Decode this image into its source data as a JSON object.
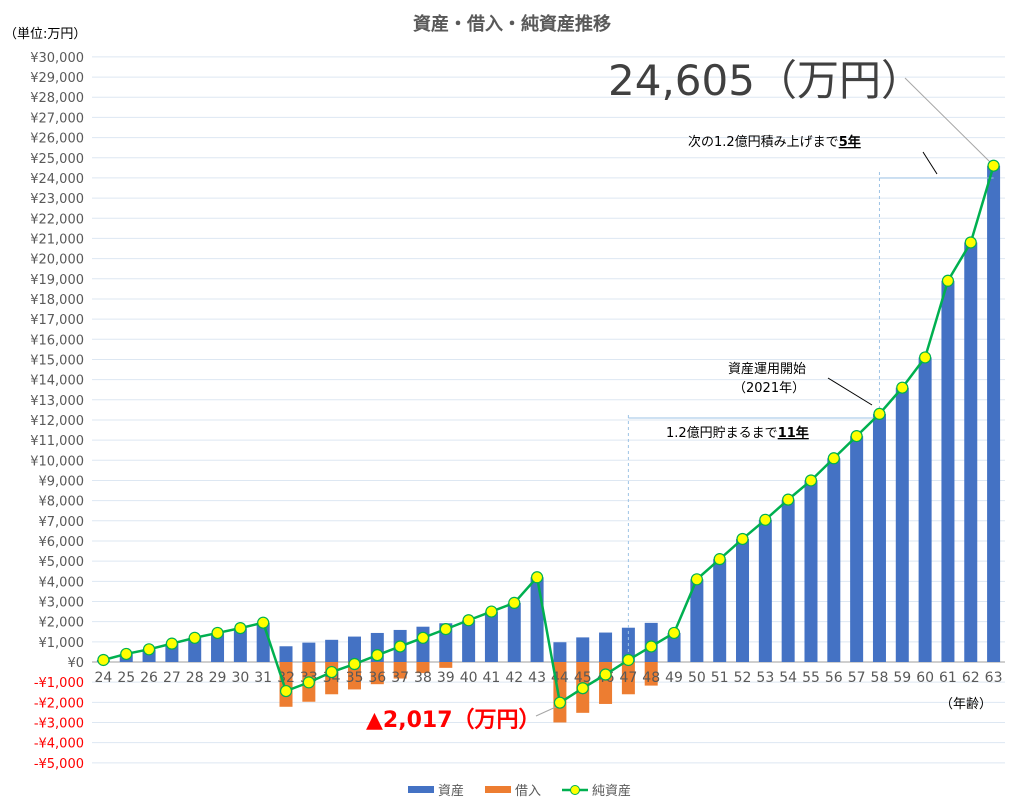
{
  "chart_data": {
    "type": "bar",
    "title": "資産・借入・純資産推移",
    "unit_label": "（単位:万円）",
    "xlabel": "（年齢）",
    "ylabel": "",
    "ylim": [
      -5000,
      30000
    ],
    "ystep": 1000,
    "grid": true,
    "legend_position": "bottom",
    "categories": [
      "24",
      "25",
      "26",
      "27",
      "28",
      "29",
      "30",
      "31",
      "32",
      "33",
      "34",
      "35",
      "36",
      "37",
      "38",
      "39",
      "40",
      "41",
      "42",
      "43",
      "44",
      "45",
      "46",
      "47",
      "48",
      "49",
      "50",
      "51",
      "52",
      "53",
      "54",
      "55",
      "56",
      "57",
      "58",
      "59",
      "60",
      "61",
      "62",
      "63"
    ],
    "series": [
      {
        "name": "資産",
        "type": "bar",
        "color": "#4472c4",
        "values": [
          100,
          400,
          630,
          910,
          1200,
          1440,
          1680,
          1950,
          780,
          960,
          1100,
          1260,
          1440,
          1590,
          1750,
          1920,
          2070,
          2500,
          2930,
          4200,
          980,
          1220,
          1460,
          1700,
          1940,
          1440,
          4100,
          5100,
          6100,
          7050,
          8050,
          9000,
          10100,
          11200,
          12300,
          13600,
          15100,
          18900,
          20800,
          24605
        ]
      },
      {
        "name": "借入",
        "type": "bar",
        "color": "#ed7d31",
        "values": [
          0,
          0,
          0,
          0,
          0,
          0,
          0,
          0,
          -2220,
          -1970,
          -1600,
          -1360,
          -1100,
          -820,
          -550,
          -290,
          0,
          0,
          0,
          0,
          -2997,
          -2520,
          -2080,
          -1600,
          -1170,
          0,
          0,
          0,
          0,
          0,
          0,
          0,
          0,
          0,
          0,
          0,
          0,
          0,
          0,
          0
        ]
      },
      {
        "name": "純資産",
        "type": "line",
        "color": "#00b050",
        "marker_color": "#ffff00",
        "values": [
          100,
          400,
          630,
          910,
          1200,
          1440,
          1680,
          1950,
          -1440,
          -1010,
          -500,
          -100,
          340,
          770,
          1200,
          1630,
          2070,
          2500,
          2930,
          4200,
          -2017,
          -1300,
          -620,
          100,
          770,
          1440,
          4100,
          5100,
          6100,
          7050,
          8050,
          9000,
          10100,
          11200,
          12300,
          13600,
          15100,
          18900,
          20800,
          24605
        ]
      }
    ],
    "annotations": {
      "final": "24,605（万円）",
      "next_prefix": "次の1.2億円積み上げまで",
      "next_years": "5年",
      "start_line1": "資産運用開始",
      "start_line2": "（2021年）",
      "until_prefix": "1.2億円貯まるまで",
      "until_years": "11年",
      "min": "▲2,017（万円）"
    }
  }
}
